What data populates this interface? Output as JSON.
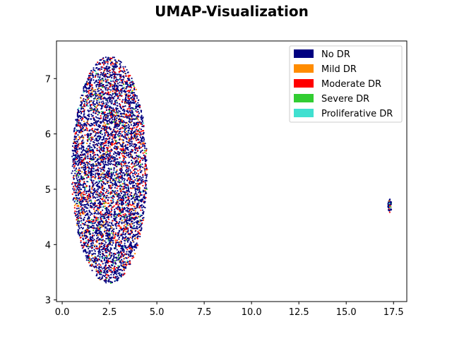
{
  "chart_data": {
    "type": "scatter",
    "title": "UMAP-Visualization",
    "xlabel": "",
    "ylabel": "",
    "xlim": [
      -0.3,
      18.2
    ],
    "ylim": [
      2.97,
      7.68
    ],
    "xticks": [
      "0.0",
      "2.5",
      "5.0",
      "7.5",
      "10.0",
      "12.5",
      "15.0",
      "17.5"
    ],
    "xtick_values": [
      0,
      2.5,
      5,
      7.5,
      10,
      12.5,
      15,
      17.5
    ],
    "yticks": [
      "3",
      "4",
      "5",
      "6",
      "7"
    ],
    "ytick_values": [
      3,
      4,
      5,
      6,
      7
    ],
    "grid": false,
    "legend_position": "top-right",
    "legend": [
      {
        "label": "No DR",
        "color": "#000080"
      },
      {
        "label": "Mild DR",
        "color": "#ff8c00"
      },
      {
        "label": "Moderate DR",
        "color": "#ff0000"
      },
      {
        "label": "Severe DR",
        "color": "#32cd32"
      },
      {
        "label": "Proliferative DR",
        "color": "#40e0d0"
      }
    ],
    "clusters": [
      {
        "name": "main",
        "center": [
          2.5,
          5.35
        ],
        "radius_x": 2.0,
        "radius_y": 2.05
      },
      {
        "name": "outlier",
        "center": [
          17.3,
          4.7
        ],
        "radius_x": 0.1,
        "radius_y": 0.12
      }
    ],
    "series": [
      {
        "name": "No DR",
        "color": "#000080",
        "approx_fraction": 0.72
      },
      {
        "name": "Mild DR",
        "color": "#ff8c00",
        "approx_fraction": 0.06
      },
      {
        "name": "Moderate DR",
        "color": "#ff0000",
        "approx_fraction": 0.17
      },
      {
        "name": "Severe DR",
        "color": "#32cd32",
        "approx_fraction": 0.03
      },
      {
        "name": "Proliferative DR",
        "color": "#40e0d0",
        "approx_fraction": 0.02
      }
    ]
  }
}
